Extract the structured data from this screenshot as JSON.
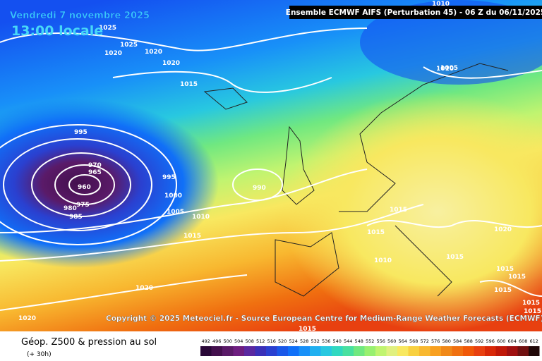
{
  "header": {
    "date": "Vendredi 7 novembre 2025",
    "time": "13:00 locale",
    "run": "Ensemble ECMWF AIFS  (Perturbation 45)  -  06 Z du 06/11/2025"
  },
  "copyright": "Copyright © 2025 Meteociel.fr - Source European Centre for Medium-Range Weather Forecasts (ECMWF)",
  "legend": {
    "title": "Géop. Z500 & pression au sol",
    "subtitle": "(+ 30h)",
    "scale": [
      492,
      496,
      500,
      504,
      508,
      512,
      516,
      520,
      524,
      528,
      532,
      536,
      540,
      544,
      548,
      552,
      556,
      560,
      564,
      568,
      572,
      576,
      580,
      584,
      588,
      592,
      596,
      600,
      604,
      608,
      612
    ],
    "colors": [
      "#2a0838",
      "#44104e",
      "#5a1a68",
      "#6e1e80",
      "#5a28a0",
      "#3a30b8",
      "#2a40d0",
      "#1a58e8",
      "#1070f8",
      "#1890f8",
      "#20b0f0",
      "#28c8e0",
      "#30d8c0",
      "#48e0a0",
      "#70e880",
      "#98f070",
      "#c0f470",
      "#e0f080",
      "#f8e860",
      "#f8d040",
      "#f8b830",
      "#f8a020",
      "#f08818",
      "#f07010",
      "#f05808",
      "#e84010",
      "#d82808",
      "#c01808",
      "#a01010",
      "#701010",
      "#200808"
    ]
  },
  "isobar_labels": [
    "1025",
    "1020",
    "1025",
    "1020",
    "1020",
    "1015",
    "995",
    "970",
    "965",
    "960",
    "980",
    "975",
    "985",
    "995",
    "1000",
    "1005",
    "990",
    "1010",
    "1015",
    "1020",
    "1010",
    "1005",
    "1010",
    "1015",
    "1015",
    "1010",
    "1015",
    "1020",
    "1015",
    "1015",
    "1015",
    "1015",
    "1015",
    "1020",
    "1015"
  ]
}
